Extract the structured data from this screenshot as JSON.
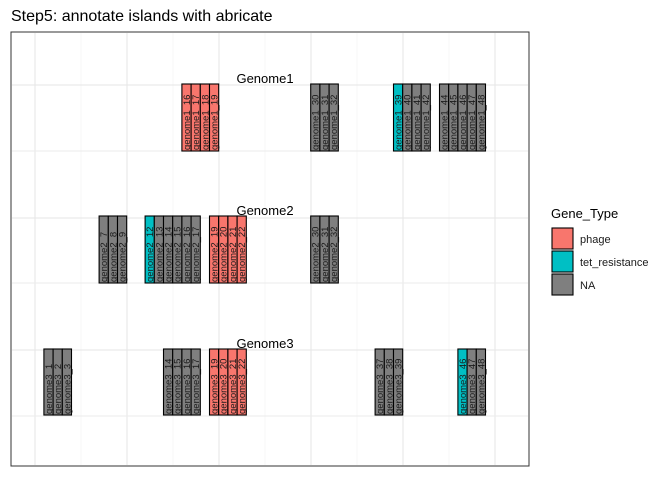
{
  "chart_data": {
    "type": "gene-arrow-map",
    "title": "Step5: annotate islands with abricate",
    "xlabel": "",
    "ylabel": "",
    "xlim": [
      1,
      50
    ],
    "grid": true,
    "legend": {
      "title": "Gene_Type",
      "position": "right",
      "entries": [
        {
          "label": "phage",
          "color": "#F8766D"
        },
        {
          "label": "tet_resistance",
          "color": "#00BFC4"
        },
        {
          "label": "NA",
          "color": "#7F7F7F"
        }
      ]
    },
    "genomes": [
      {
        "name": "Genome1",
        "genes": [
          {
            "label": "genome1_16",
            "pos": 16,
            "type": "phage"
          },
          {
            "label": "genome1_17",
            "pos": 17,
            "type": "phage"
          },
          {
            "label": "genome1_18",
            "pos": 18,
            "type": "phage"
          },
          {
            "label": "genome1_19",
            "pos": 19,
            "type": "phage"
          },
          {
            "label": "genome1_30",
            "pos": 30,
            "type": "NA"
          },
          {
            "label": "genome1_31",
            "pos": 31,
            "type": "NA"
          },
          {
            "label": "genome1_32",
            "pos": 32,
            "type": "NA"
          },
          {
            "label": "genome1_39",
            "pos": 39,
            "type": "tet_resistance"
          },
          {
            "label": "genome1_40",
            "pos": 40,
            "type": "NA"
          },
          {
            "label": "genome1_41",
            "pos": 41,
            "type": "NA"
          },
          {
            "label": "genome1_42",
            "pos": 42,
            "type": "NA"
          },
          {
            "label": "genome1_44",
            "pos": 44,
            "type": "NA"
          },
          {
            "label": "genome1_45",
            "pos": 45,
            "type": "NA"
          },
          {
            "label": "genome1_46",
            "pos": 46,
            "type": "NA"
          },
          {
            "label": "genome1_47",
            "pos": 47,
            "type": "NA"
          },
          {
            "label": "genome1_48",
            "pos": 48,
            "type": "NA"
          }
        ]
      },
      {
        "name": "Genome2",
        "genes": [
          {
            "label": "genome2_7",
            "pos": 7,
            "type": "NA"
          },
          {
            "label": "genome2_8",
            "pos": 8,
            "type": "NA"
          },
          {
            "label": "genome2_9",
            "pos": 9,
            "type": "NA"
          },
          {
            "label": "genome2_12",
            "pos": 12,
            "type": "tet_resistance"
          },
          {
            "label": "genome2_13",
            "pos": 13,
            "type": "NA"
          },
          {
            "label": "genome2_14",
            "pos": 14,
            "type": "NA"
          },
          {
            "label": "genome2_15",
            "pos": 15,
            "type": "NA"
          },
          {
            "label": "genome2_16",
            "pos": 16,
            "type": "NA"
          },
          {
            "label": "genome2_17",
            "pos": 17,
            "type": "NA"
          },
          {
            "label": "genome2_19",
            "pos": 19,
            "type": "phage"
          },
          {
            "label": "genome2_20",
            "pos": 20,
            "type": "phage"
          },
          {
            "label": "genome2_21",
            "pos": 21,
            "type": "phage"
          },
          {
            "label": "genome2_22",
            "pos": 22,
            "type": "phage"
          },
          {
            "label": "genome2_30",
            "pos": 30,
            "type": "NA"
          },
          {
            "label": "genome2_31",
            "pos": 31,
            "type": "NA"
          },
          {
            "label": "genome2_32",
            "pos": 32,
            "type": "NA"
          }
        ]
      },
      {
        "name": "Genome3",
        "genes": [
          {
            "label": "genome3_1",
            "pos": 1,
            "type": "NA"
          },
          {
            "label": "genome3_2",
            "pos": 2,
            "type": "NA"
          },
          {
            "label": "genome3_3",
            "pos": 3,
            "type": "NA"
          },
          {
            "label": "genome3_14",
            "pos": 14,
            "type": "NA"
          },
          {
            "label": "genome3_15",
            "pos": 15,
            "type": "NA"
          },
          {
            "label": "genome3_16",
            "pos": 16,
            "type": "NA"
          },
          {
            "label": "genome3_17",
            "pos": 17,
            "type": "NA"
          },
          {
            "label": "genome3_19",
            "pos": 19,
            "type": "phage"
          },
          {
            "label": "genome3_20",
            "pos": 20,
            "type": "phage"
          },
          {
            "label": "genome3_21",
            "pos": 21,
            "type": "phage"
          },
          {
            "label": "genome3_22",
            "pos": 22,
            "type": "phage"
          },
          {
            "label": "genome3_37",
            "pos": 37,
            "type": "NA"
          },
          {
            "label": "genome3_38",
            "pos": 38,
            "type": "NA"
          },
          {
            "label": "genome3_39",
            "pos": 39,
            "type": "NA"
          },
          {
            "label": "genome3_46",
            "pos": 46,
            "type": "tet_resistance"
          },
          {
            "label": "genome3_47",
            "pos": 47,
            "type": "NA"
          },
          {
            "label": "genome3_48",
            "pos": 48,
            "type": "NA"
          }
        ]
      }
    ]
  }
}
